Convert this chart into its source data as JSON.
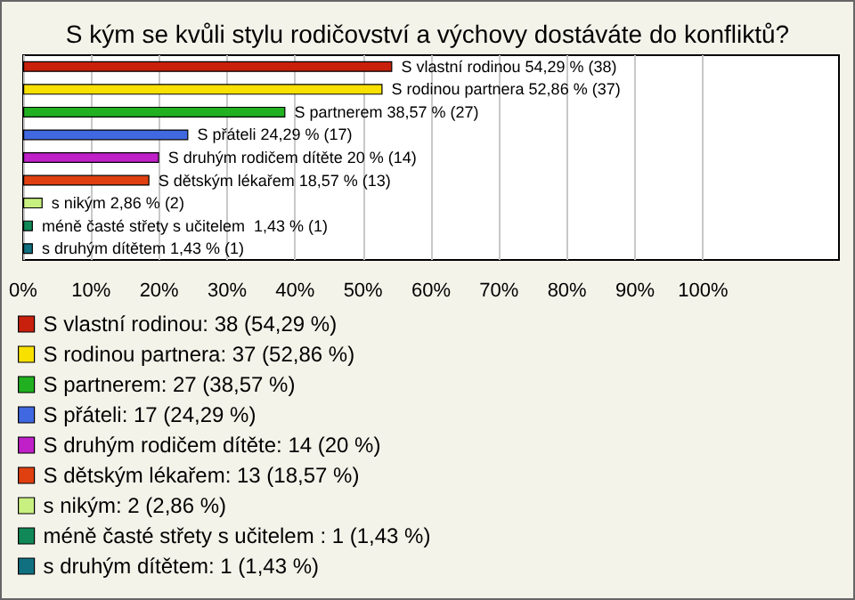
{
  "chart_data": {
    "type": "bar",
    "orientation": "horizontal",
    "stacked": true,
    "title": "S kým se kvůli stylu rodičovství a výchovy dostáváte do konfliktů?",
    "categories": [
      null,
      null,
      null,
      null,
      null,
      null,
      null,
      null,
      null
    ],
    "series": [
      {
        "name": "S vlastní rodinou: 38 (54,29 %)",
        "color": "#c8200c",
        "values": [
          54.29,
          null,
          null,
          null,
          null,
          null,
          null,
          null,
          null
        ],
        "value_labels": [
          "S vlastní rodinou 54,29 % (38)",
          null,
          null,
          null,
          null,
          null,
          null,
          null,
          null
        ]
      },
      {
        "name": "S rodinou partnera: 37 (52,86 %)",
        "color": "#f8e000",
        "values": [
          null,
          52.86,
          null,
          null,
          null,
          null,
          null,
          null,
          null
        ],
        "value_labels": [
          null,
          "S rodinou partnera 52,86 % (37)",
          null,
          null,
          null,
          null,
          null,
          null,
          null
        ]
      },
      {
        "name": "S partnerem: 27 (38,57 %)",
        "color": "#20b020",
        "values": [
          null,
          null,
          38.57,
          null,
          null,
          null,
          null,
          null,
          null
        ],
        "value_labels": [
          null,
          null,
          "S partnerem 38,57 % (27)",
          null,
          null,
          null,
          null,
          null,
          null
        ]
      },
      {
        "name": "S přáteli: 17 (24,29 %)",
        "color": "#4068e0",
        "values": [
          null,
          null,
          null,
          24.29,
          null,
          null,
          null,
          null,
          null
        ],
        "value_labels": [
          null,
          null,
          null,
          "S přáteli 24,29 % (17)",
          null,
          null,
          null,
          null,
          null
        ]
      },
      {
        "name": "S druhým rodičem dítěte: 14 (20 %)",
        "color": "#c020c8",
        "values": [
          null,
          null,
          null,
          null,
          20,
          null,
          null,
          null,
          null
        ],
        "value_labels": [
          null,
          null,
          null,
          null,
          "S druhým rodičem dítěte 20 % (14)",
          null,
          null,
          null,
          null
        ]
      },
      {
        "name": "S dětským lékařem: 13 (18,57 %)",
        "color": "#e04010",
        "values": [
          null,
          null,
          null,
          null,
          null,
          18.57,
          null,
          null,
          null
        ],
        "value_labels": [
          null,
          null,
          null,
          null,
          null,
          "S dětským lékařem 18,57 % (13)",
          null,
          null,
          null
        ]
      },
      {
        "name": "s nikým: 2 (2,86 %)",
        "color": "#c8f080",
        "values": [
          null,
          null,
          null,
          null,
          null,
          null,
          2.86,
          null,
          null
        ],
        "value_labels": [
          null,
          null,
          null,
          null,
          null,
          null,
          "s nikým 2,86 % (2)",
          null,
          null
        ]
      },
      {
        "name": "méně časté střety s učitelem : 1 (1,43 %)",
        "color": "#108858",
        "values": [
          null,
          null,
          null,
          null,
          null,
          null,
          null,
          1.43,
          null
        ],
        "value_labels": [
          null,
          null,
          null,
          null,
          null,
          null,
          null,
          "méně časté střety s učitelem  1,43 % (1)",
          null
        ]
      },
      {
        "name": "s druhým dítětem: 1 (1,43 %)",
        "color": "#107080",
        "values": [
          null,
          null,
          null,
          null,
          null,
          null,
          null,
          null,
          1.43
        ],
        "value_labels": [
          null,
          null,
          null,
          null,
          null,
          null,
          null,
          null,
          "s druhým dítětem 1,43 % (1)"
        ]
      }
    ],
    "xlim": [
      0,
      120
    ],
    "xticks": [
      {
        "value": 0,
        "label": "0%"
      },
      {
        "value": 10,
        "label": "10%"
      },
      {
        "value": 20,
        "label": "20%"
      },
      {
        "value": 30,
        "label": "30%"
      },
      {
        "value": 40,
        "label": "40%"
      },
      {
        "value": 50,
        "label": "50%"
      },
      {
        "value": 60,
        "label": "60%"
      },
      {
        "value": 70,
        "label": "70%"
      },
      {
        "value": 80,
        "label": "80%"
      },
      {
        "value": 90,
        "label": "90%"
      },
      {
        "value": 100,
        "label": "100%"
      }
    ],
    "grid": "x",
    "legend": "bottom",
    "tick_labels": "x"
  }
}
